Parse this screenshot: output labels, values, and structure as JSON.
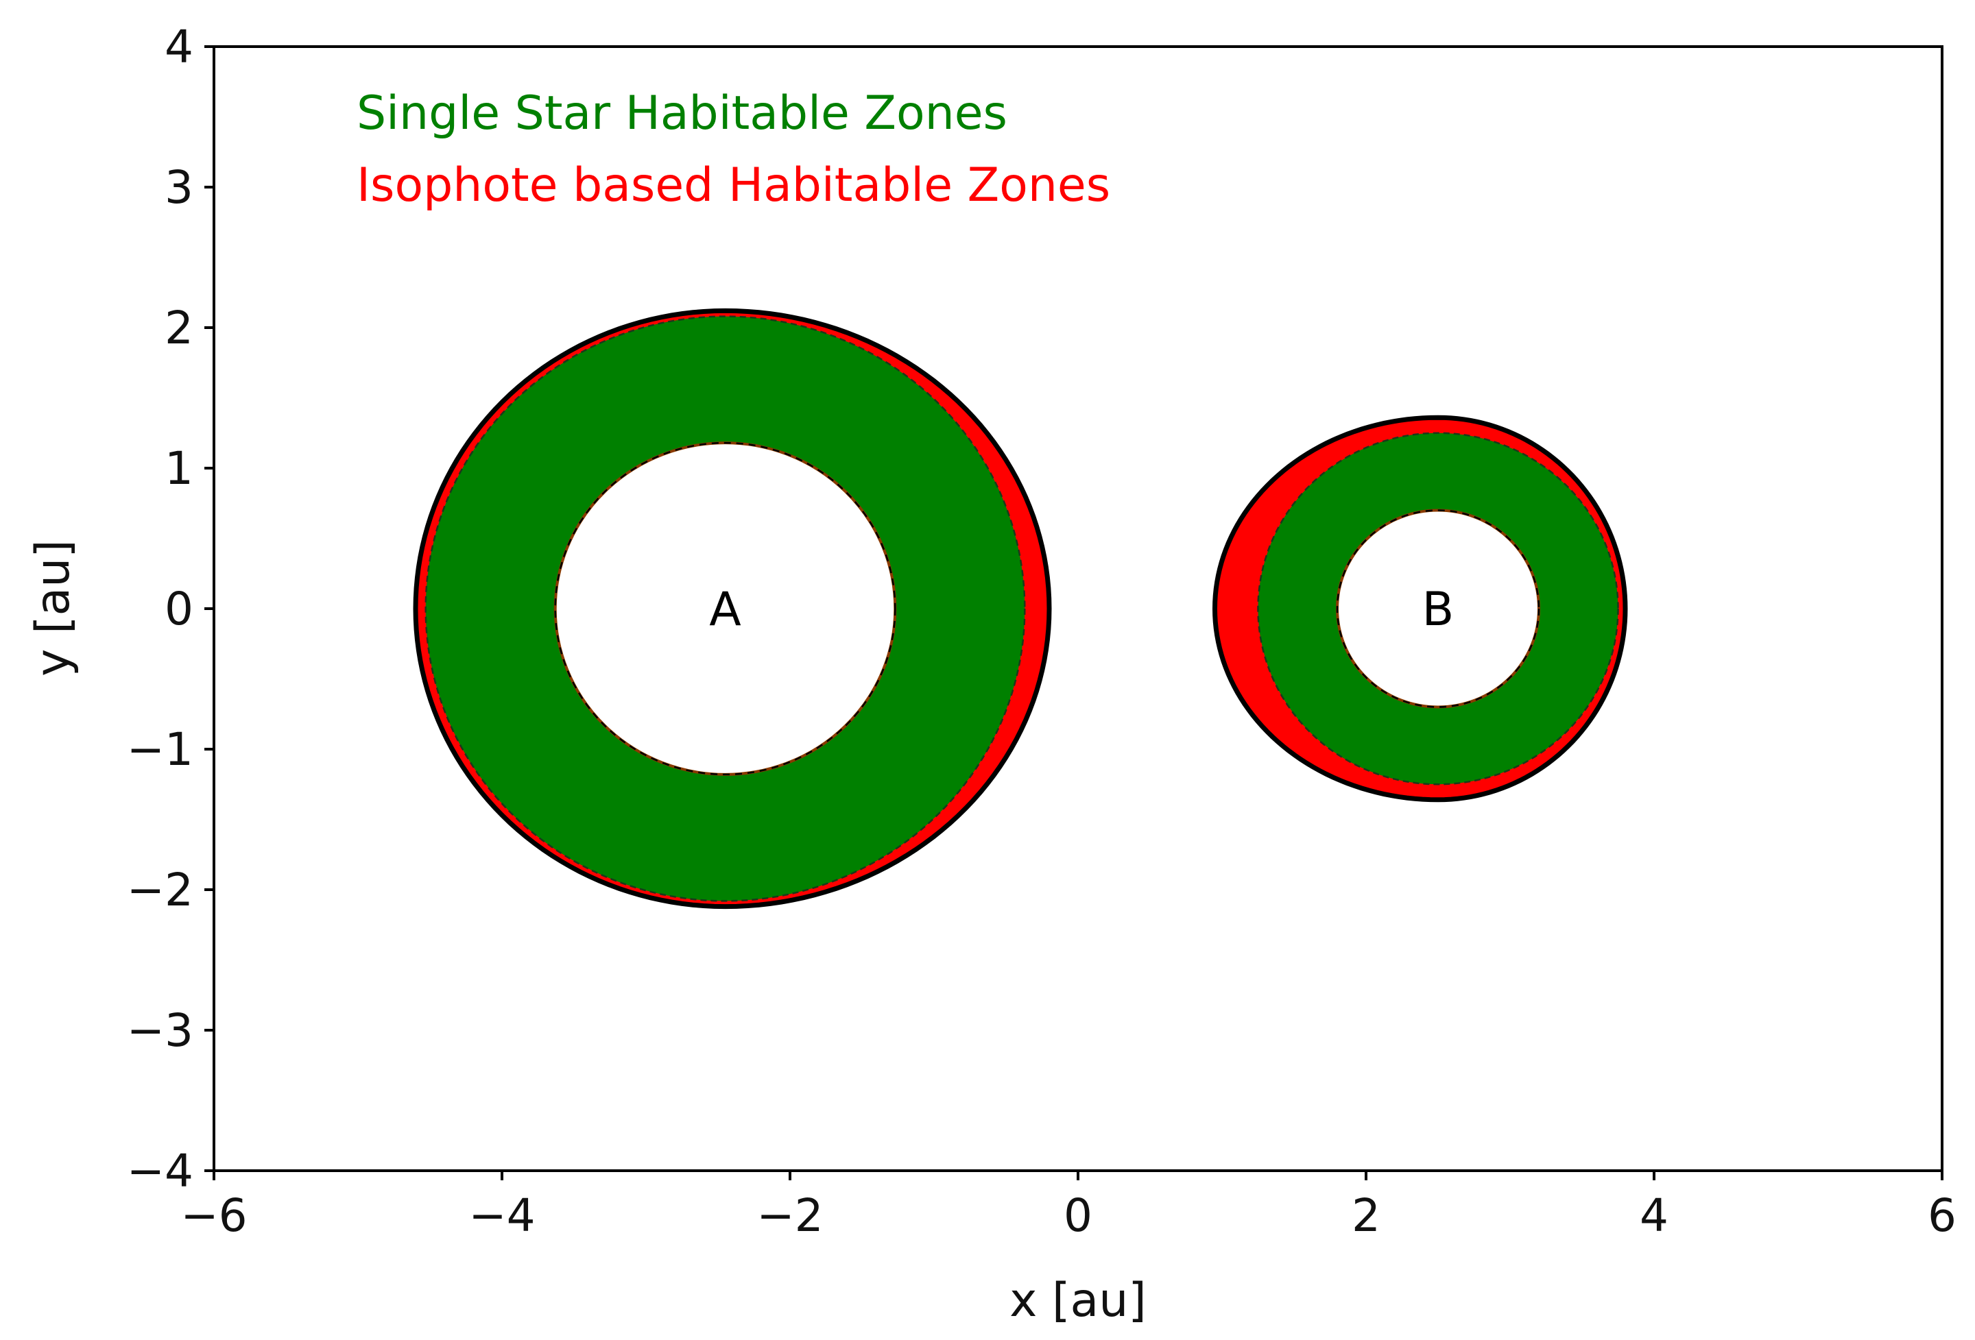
{
  "chart_data": {
    "type": "scatter",
    "title": "",
    "xlabel": "x [au]",
    "ylabel": "y [au]",
    "xlim": [
      -6,
      6
    ],
    "ylim": [
      -4,
      4
    ],
    "xticks": [
      -6,
      -4,
      -2,
      0,
      2,
      4,
      6
    ],
    "yticks": [
      -4,
      -3,
      -2,
      -1,
      0,
      1,
      2,
      3,
      4
    ],
    "xtick_labels": [
      "−6",
      "−4",
      "−2",
      "0",
      "2",
      "4",
      "6"
    ],
    "ytick_labels": [
      "−4",
      "−3",
      "−2",
      "−1",
      "0",
      "1",
      "2",
      "3",
      "4"
    ],
    "grid": false,
    "legend": {
      "placement": "top-left",
      "entries": [
        {
          "text": "Single Star Habitable Zones",
          "color": "#008000"
        },
        {
          "text": "Isophote based Habitable Zones",
          "color": "#ff0000"
        }
      ]
    },
    "stars": [
      {
        "label": "A",
        "center": [
          -2.45,
          0
        ],
        "single_star_hz": {
          "inner_radius": 1.18,
          "outer_radius": 2.08
        },
        "isophote_hz": {
          "inner_radius": 1.18,
          "outer_boundary": {
            "x_min": -4.6,
            "x_max": -0.2,
            "y_max": 2.12,
            "y_min": -2.12
          }
        }
      },
      {
        "label": "B",
        "center": [
          2.5,
          0
        ],
        "single_star_hz": {
          "inner_radius": 0.7,
          "outer_radius": 1.25
        },
        "isophote_hz": {
          "inner_radius": 0.7,
          "outer_boundary": {
            "x_min": 0.95,
            "x_max": 3.8,
            "y_max": 1.36,
            "y_min": -1.36
          }
        }
      }
    ],
    "colors": {
      "single_star_fill": "#008000",
      "isophote_fill": "#ff0000",
      "outline": "#000000"
    }
  }
}
